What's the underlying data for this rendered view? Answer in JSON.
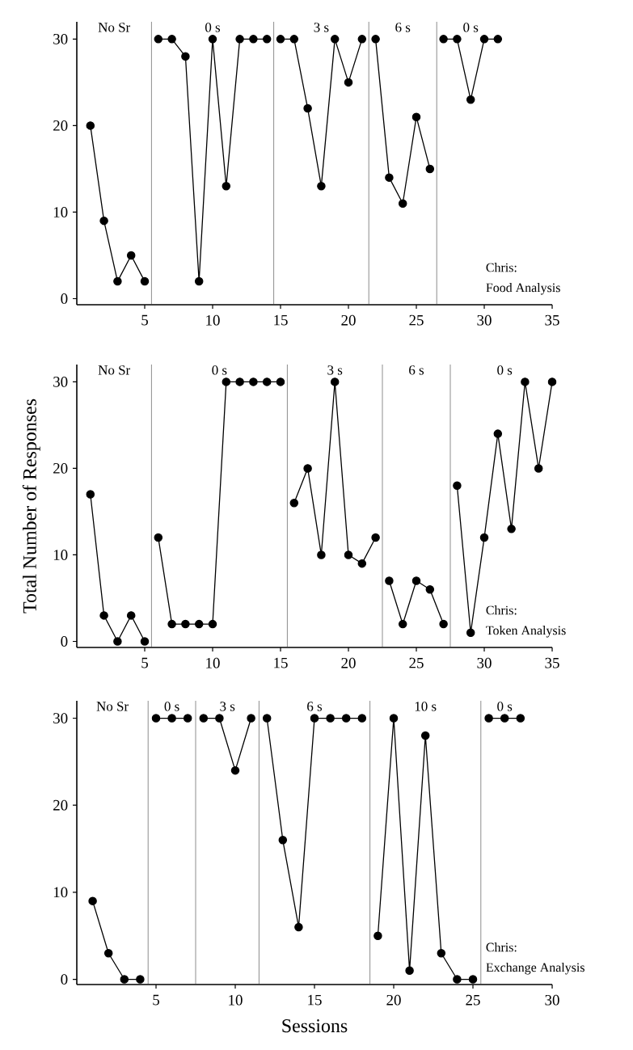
{
  "chart_data": [
    {
      "type": "line",
      "marker": "circle",
      "xlim": [
        0,
        35
      ],
      "ylim": [
        -0.7,
        32
      ],
      "xticks": [
        5,
        10,
        15,
        20,
        25,
        30,
        35
      ],
      "yticks": [
        0,
        10,
        20,
        30
      ],
      "series": [
        {
          "color": "#000000",
          "x": [
            1,
            2,
            3,
            4,
            5
          ],
          "values": [
            20,
            9,
            2,
            5,
            2
          ]
        },
        {
          "color": "#000000",
          "x": [
            6,
            7,
            8,
            9,
            10,
            11,
            12,
            13,
            14
          ],
          "values": [
            30,
            30,
            28,
            2,
            30,
            13,
            30,
            30,
            30
          ]
        },
        {
          "color": "#000000",
          "x": [
            15,
            16,
            17,
            18,
            19,
            20,
            21
          ],
          "values": [
            30,
            30,
            22,
            13,
            30,
            25,
            30
          ]
        },
        {
          "color": "#000000",
          "x": [
            22,
            23,
            24,
            25,
            26
          ],
          "values": [
            30,
            14,
            11,
            21,
            15
          ]
        },
        {
          "color": "#000000",
          "x": [
            27,
            28,
            29,
            30,
            31
          ],
          "values": [
            30,
            30,
            23,
            30,
            30
          ]
        }
      ],
      "ref_lines": [
        {
          "axis": "x",
          "value": 5.5
        },
        {
          "axis": "x",
          "value": 14.5
        },
        {
          "axis": "x",
          "value": 21.5
        },
        {
          "axis": "x",
          "value": 26.5
        }
      ],
      "annotations": [
        "No Sr",
        "0 s",
        "3 s",
        "6 s",
        "0 s",
        "Chris:",
        "Food Analysis"
      ]
    },
    {
      "type": "line",
      "marker": "circle",
      "ylabel": "Total Number of Responses",
      "xlim": [
        0,
        35
      ],
      "ylim": [
        -0.7,
        32
      ],
      "xticks": [
        5,
        10,
        15,
        20,
        25,
        30,
        35
      ],
      "yticks": [
        0,
        10,
        20,
        30
      ],
      "series": [
        {
          "color": "#000000",
          "x": [
            1,
            2,
            3,
            4,
            5
          ],
          "values": [
            17,
            3,
            0,
            3,
            0
          ]
        },
        {
          "color": "#000000",
          "x": [
            6,
            7,
            8,
            9,
            10,
            11,
            12,
            13,
            14,
            15
          ],
          "values": [
            12,
            2,
            2,
            2,
            2,
            30,
            30,
            30,
            30,
            30
          ]
        },
        {
          "color": "#000000",
          "x": [
            16,
            17,
            18,
            19,
            20,
            21,
            22
          ],
          "values": [
            16,
            20,
            10,
            30,
            10,
            9,
            12
          ]
        },
        {
          "color": "#000000",
          "x": [
            23,
            24,
            25,
            26,
            27
          ],
          "values": [
            7,
            2,
            7,
            6,
            2
          ]
        },
        {
          "color": "#000000",
          "x": [
            28,
            29,
            30,
            31,
            32,
            33,
            34,
            35
          ],
          "values": [
            18,
            1,
            12,
            24,
            13,
            30,
            20,
            30
          ]
        }
      ],
      "ref_lines": [
        {
          "axis": "x",
          "value": 5.5
        },
        {
          "axis": "x",
          "value": 15.5
        },
        {
          "axis": "x",
          "value": 22.5
        },
        {
          "axis": "x",
          "value": 27.5
        }
      ],
      "annotations": [
        "No Sr",
        "0 s",
        "3 s",
        "6 s",
        "0 s",
        "Chris:",
        "Token Analysis"
      ]
    },
    {
      "type": "line",
      "marker": "circle",
      "xlabel": "Sessions",
      "xlim": [
        0,
        30
      ],
      "ylim": [
        -0.6,
        32
      ],
      "xticks": [
        5,
        10,
        15,
        20,
        25,
        30
      ],
      "yticks": [
        0,
        10,
        20,
        30
      ],
      "series": [
        {
          "color": "#000000",
          "x": [
            1,
            2,
            3,
            4
          ],
          "values": [
            9,
            3,
            0,
            0
          ]
        },
        {
          "color": "#000000",
          "x": [
            5,
            6,
            7
          ],
          "values": [
            30,
            30,
            30
          ]
        },
        {
          "color": "#000000",
          "x": [
            8,
            9,
            10,
            11
          ],
          "values": [
            30,
            30,
            24,
            30
          ]
        },
        {
          "color": "#000000",
          "x": [
            12,
            13,
            14,
            15,
            16,
            17,
            18
          ],
          "values": [
            30,
            16,
            6,
            30,
            30,
            30,
            30
          ]
        },
        {
          "color": "#000000",
          "x": [
            19,
            20,
            21,
            22,
            23,
            24,
            25
          ],
          "values": [
            5,
            30,
            1,
            28,
            3,
            0,
            0
          ]
        },
        {
          "color": "#000000",
          "x": [
            26,
            27,
            28
          ],
          "values": [
            30,
            30,
            30
          ]
        }
      ],
      "ref_lines": [
        {
          "axis": "x",
          "value": 4.5
        },
        {
          "axis": "x",
          "value": 7.5
        },
        {
          "axis": "x",
          "value": 11.5
        },
        {
          "axis": "x",
          "value": 18.5
        },
        {
          "axis": "x",
          "value": 25.5
        }
      ],
      "annotations": [
        "No Sr",
        "0 s",
        "3 s",
        "6 s",
        "10 s",
        "0 s",
        "Chris:",
        "Exchange Analysis"
      ]
    }
  ]
}
